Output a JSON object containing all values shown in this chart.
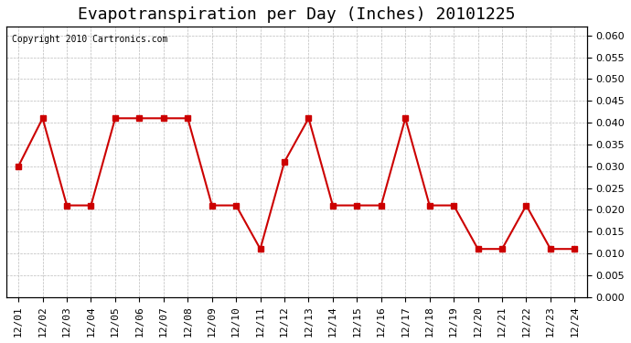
{
  "title": "Evapotranspiration per Day (Inches) 20101225",
  "copyright_text": "Copyright 2010 Cartronics.com",
  "x_labels": [
    "12/01",
    "12/02",
    "12/03",
    "12/04",
    "12/05",
    "12/06",
    "12/07",
    "12/08",
    "12/09",
    "12/10",
    "12/11",
    "12/12",
    "12/13",
    "12/14",
    "12/15",
    "12/16",
    "12/17",
    "12/18",
    "12/19",
    "12/20",
    "12/21",
    "12/22",
    "12/23",
    "12/24"
  ],
  "y_values": [
    0.03,
    0.041,
    0.021,
    0.021,
    0.041,
    0.041,
    0.041,
    0.041,
    0.021,
    0.021,
    0.011,
    0.031,
    0.041,
    0.021,
    0.021,
    0.021,
    0.041,
    0.021,
    0.021,
    0.011,
    0.011,
    0.021,
    0.011,
    0.011
  ],
  "line_color": "#cc0000",
  "marker": "s",
  "marker_size": 4,
  "line_width": 1.5,
  "ylim": [
    0.0,
    0.062
  ],
  "yticks": [
    0.0,
    0.005,
    0.01,
    0.015,
    0.02,
    0.025,
    0.03,
    0.035,
    0.04,
    0.045,
    0.05,
    0.055,
    0.06
  ],
  "bg_color": "#ffffff",
  "grid_color": "#bbbbbb",
  "title_fontsize": 13,
  "tick_fontsize": 8,
  "copyright_fontsize": 7
}
